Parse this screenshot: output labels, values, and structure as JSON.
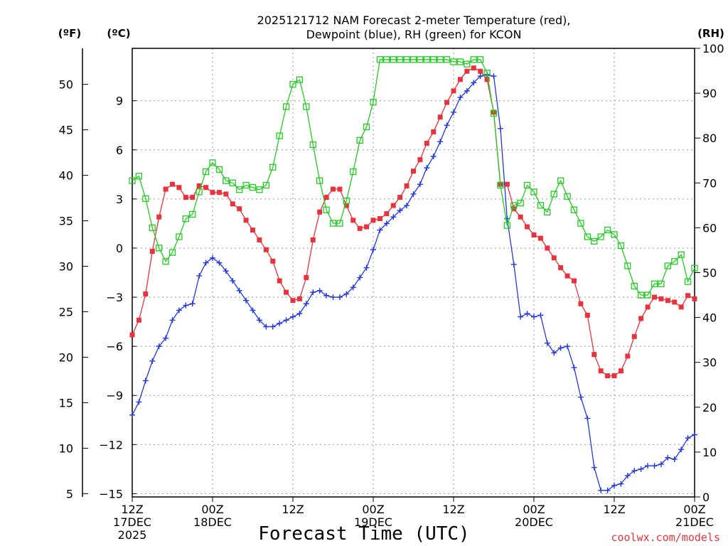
{
  "chart_data": {
    "type": "line",
    "title_lines": [
      "2025121712 NAM Forecast 2-meter Temperature (red),",
      "Dewpoint (blue), RH (green) for KCON"
    ],
    "xlabel": "Forecast Time (UTC)",
    "credit": "coolwx.com/models",
    "units": {
      "fahrenheit": "(ºF)",
      "celsius": "(ºC)",
      "rh": "(RH)"
    },
    "x_range_hours": [
      0,
      84
    ],
    "celsius_range": [
      -15.2,
      12.2
    ],
    "fahrenheit_ticks": [
      "5",
      "10",
      "15",
      "20",
      "25",
      "30",
      "35",
      "40",
      "45",
      "50"
    ],
    "fahrenheit_values": [
      5,
      10,
      15,
      20,
      25,
      30,
      35,
      40,
      45,
      50
    ],
    "celsius_ticks": [
      "−15",
      "−12",
      "−9",
      "−6",
      "−3",
      "0",
      "3",
      "6",
      "9"
    ],
    "celsius_values": [
      -15,
      -12,
      -9,
      -6,
      -3,
      0,
      3,
      6,
      9
    ],
    "rh_range": [
      0,
      100
    ],
    "rh_ticks": [
      "0",
      "10",
      "20",
      "30",
      "40",
      "50",
      "60",
      "70",
      "80",
      "90",
      "100"
    ],
    "rh_values": [
      0,
      10,
      20,
      30,
      40,
      50,
      60,
      70,
      80,
      90,
      100
    ],
    "x_ticks": [
      {
        "hour": 0,
        "lines": [
          "12Z",
          "17DEC",
          "2025"
        ]
      },
      {
        "hour": 12,
        "lines": [
          "00Z",
          "18DEC"
        ]
      },
      {
        "hour": 24,
        "lines": [
          "12Z"
        ]
      },
      {
        "hour": 36,
        "lines": [
          "00Z",
          "19DEC"
        ]
      },
      {
        "hour": 48,
        "lines": [
          "12Z"
        ]
      },
      {
        "hour": 60,
        "lines": [
          "00Z",
          "20DEC"
        ]
      },
      {
        "hour": 72,
        "lines": [
          "12Z"
        ]
      },
      {
        "hour": 84,
        "lines": [
          "00Z",
          "21DEC"
        ]
      }
    ],
    "series": [
      {
        "name": "Temperature",
        "unit": "C",
        "color": "#e8323c",
        "marker": "filled-square",
        "x": [
          0,
          1,
          2,
          3,
          4,
          5,
          6,
          7,
          8,
          9,
          10,
          11,
          12,
          13,
          14,
          15,
          16,
          17,
          18,
          19,
          20,
          21,
          22,
          23,
          24,
          25,
          26,
          27,
          28,
          29,
          30,
          31,
          32,
          33,
          34,
          35,
          36,
          37,
          38,
          39,
          40,
          41,
          42,
          43,
          44,
          45,
          46,
          47,
          48,
          49,
          50,
          51,
          52,
          53,
          54,
          55,
          56,
          57,
          58,
          59,
          60,
          61,
          62,
          63,
          64,
          65,
          66,
          67,
          68,
          69,
          70,
          71,
          72,
          73,
          74,
          75,
          76,
          77,
          78,
          79,
          80,
          81,
          82,
          83,
          84
        ],
        "values": [
          -5.3,
          -4.4,
          -2.8,
          -0.2,
          1.9,
          3.6,
          3.9,
          3.7,
          3.1,
          3.1,
          3.8,
          3.7,
          3.4,
          3.4,
          3.3,
          2.7,
          2.4,
          1.7,
          1.1,
          0.5,
          -0.1,
          -0.8,
          -2.0,
          -2.7,
          -3.2,
          -3.1,
          -1.8,
          0.5,
          2.2,
          3.1,
          3.6,
          3.6,
          2.6,
          1.7,
          1.2,
          1.3,
          1.7,
          1.8,
          2.1,
          2.6,
          3.1,
          3.8,
          4.7,
          5.4,
          6.4,
          7.1,
          8.0,
          8.9,
          9.6,
          10.3,
          10.8,
          11.0,
          10.8,
          10.3,
          8.3,
          3.9,
          3.9,
          2.4,
          1.9,
          1.3,
          0.8,
          0.6,
          0.0,
          -0.6,
          -1.2,
          -1.7,
          -2.0,
          -3.4,
          -4.1,
          -6.5,
          -7.5,
          -7.8,
          -7.8,
          -7.5,
          -6.6,
          -5.4,
          -4.3,
          -3.6,
          -3.0,
          -3.1,
          -3.2,
          -3.3,
          -3.6,
          -2.9,
          -3.1
        ]
      },
      {
        "name": "Dewpoint",
        "unit": "C",
        "color": "#2237e0",
        "marker": "plus",
        "x": [
          0,
          1,
          2,
          3,
          4,
          5,
          6,
          7,
          8,
          9,
          10,
          11,
          12,
          13,
          14,
          15,
          16,
          17,
          18,
          19,
          20,
          21,
          22,
          23,
          24,
          25,
          26,
          27,
          28,
          29,
          30,
          31,
          32,
          33,
          34,
          35,
          36,
          37,
          38,
          39,
          40,
          41,
          42,
          43,
          44,
          45,
          46,
          47,
          48,
          49,
          50,
          51,
          52,
          53,
          54,
          55,
          56,
          57,
          58,
          59,
          60,
          61,
          62,
          63,
          64,
          65,
          66,
          67,
          68,
          69,
          70,
          71,
          72,
          73,
          74,
          75,
          76,
          77,
          78,
          79,
          80,
          81,
          82,
          83,
          84
        ],
        "values": [
          -10.2,
          -9.4,
          -8.1,
          -6.9,
          -6.0,
          -5.5,
          -4.4,
          -3.8,
          -3.5,
          -3.4,
          -1.7,
          -0.9,
          -0.6,
          -0.9,
          -1.4,
          -2.0,
          -2.6,
          -3.2,
          -3.8,
          -4.4,
          -4.8,
          -4.8,
          -4.6,
          -4.4,
          -4.2,
          -4.0,
          -3.4,
          -2.7,
          -2.6,
          -2.9,
          -3.0,
          -3.0,
          -2.8,
          -2.4,
          -1.8,
          -1.2,
          -0.1,
          1.1,
          1.5,
          1.9,
          2.3,
          2.6,
          3.3,
          3.9,
          4.9,
          5.6,
          6.5,
          7.5,
          8.3,
          9.2,
          9.6,
          10.1,
          10.5,
          10.6,
          10.5,
          7.3,
          1.8,
          -1.0,
          -4.2,
          -4.0,
          -4.2,
          -4.1,
          -5.8,
          -6.4,
          -6.1,
          -6.0,
          -7.3,
          -9.1,
          -10.4,
          -13.4,
          -14.8,
          -14.8,
          -14.5,
          -14.4,
          -13.9,
          -13.6,
          -13.5,
          -13.3,
          -13.3,
          -13.2,
          -12.8,
          -12.9,
          -12.3,
          -11.6,
          -11.4
        ]
      },
      {
        "name": "RH",
        "unit": "%",
        "color": "#22cc22",
        "marker": "open-square",
        "x": [
          0,
          1,
          2,
          3,
          4,
          5,
          6,
          7,
          8,
          9,
          10,
          11,
          12,
          13,
          14,
          15,
          16,
          17,
          18,
          19,
          20,
          21,
          22,
          23,
          24,
          25,
          26,
          27,
          28,
          29,
          30,
          31,
          32,
          33,
          34,
          35,
          36,
          37,
          38,
          39,
          40,
          41,
          42,
          43,
          44,
          45,
          46,
          47,
          48,
          49,
          50,
          51,
          52,
          53,
          54,
          55,
          56,
          57,
          58,
          59,
          60,
          61,
          62,
          63,
          64,
          65,
          66,
          67,
          68,
          69,
          70,
          71,
          72,
          73,
          74,
          75,
          76,
          77,
          78,
          79,
          80,
          81,
          82,
          83,
          84
        ],
        "values": [
          70.5,
          71.5,
          66.5,
          60.0,
          55.5,
          52.5,
          54.5,
          58.0,
          62.0,
          63.0,
          68.0,
          72.5,
          74.5,
          73.0,
          70.5,
          70.0,
          68.5,
          69.5,
          69.0,
          68.5,
          69.5,
          73.5,
          80.5,
          87.0,
          92.0,
          93.0,
          87.0,
          78.5,
          70.5,
          64.0,
          61.0,
          61.0,
          66.0,
          72.5,
          79.5,
          82.5,
          88.0,
          97.5,
          97.5,
          97.5,
          97.5,
          97.5,
          97.5,
          97.5,
          97.5,
          97.5,
          97.5,
          97.5,
          97.0,
          97.0,
          96.5,
          97.5,
          97.5,
          94.5,
          85.5,
          69.5,
          60.5,
          65.0,
          65.5,
          69.5,
          68.0,
          65.0,
          63.5,
          67.5,
          70.5,
          67.0,
          64.0,
          61.0,
          58.0,
          57.0,
          58.0,
          59.5,
          58.5,
          56.0,
          51.5,
          47.0,
          45.0,
          45.0,
          47.5,
          47.5,
          51.5,
          52.5,
          54.0,
          48.0,
          51.0
        ]
      }
    ]
  }
}
